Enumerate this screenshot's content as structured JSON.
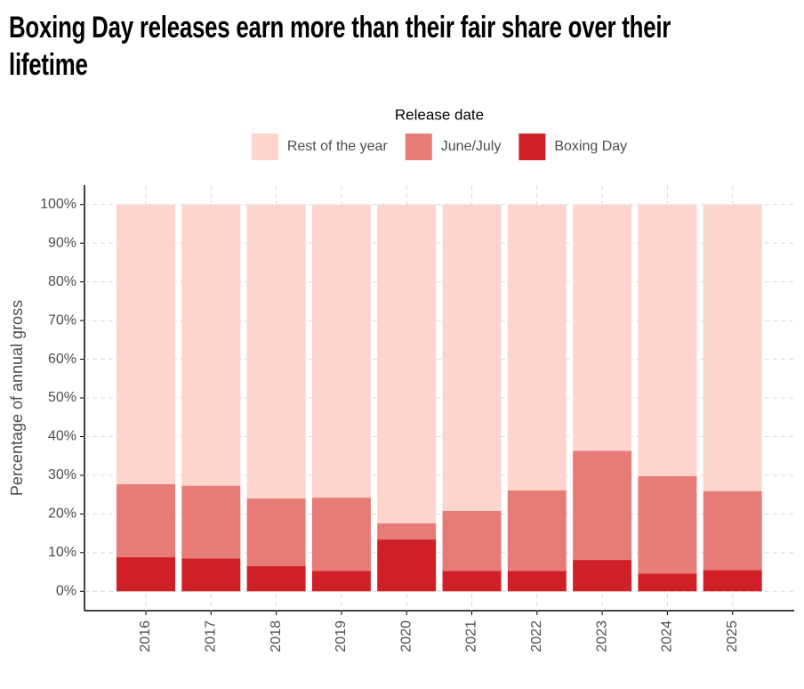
{
  "chart_data": {
    "type": "stacked-bar",
    "title": "Boxing Day releases earn more than their fair share over their lifetime",
    "legend_title": "Release date",
    "y_label": "Percentage of annual gross",
    "categories": [
      "2016",
      "2017",
      "2018",
      "2019",
      "2020",
      "2021",
      "2022",
      "2023",
      "2024",
      "2025"
    ],
    "series": [
      {
        "name": "Rest of the year",
        "color": "#fdd5cd",
        "values": [
          72.3,
          72.7,
          76.0,
          75.8,
          82.4,
          79.2,
          73.9,
          63.7,
          70.2,
          74.1
        ]
      },
      {
        "name": "June/July",
        "color": "#e77b78",
        "values": [
          18.9,
          18.8,
          17.5,
          18.9,
          4.2,
          15.5,
          20.8,
          28.2,
          25.2,
          20.4
        ]
      },
      {
        "name": "Boxing Day",
        "color": "#d02027",
        "values": [
          8.8,
          8.5,
          6.5,
          5.3,
          13.4,
          5.3,
          5.3,
          8.1,
          4.6,
          5.5
        ]
      }
    ],
    "ylim": [
      -5,
      105
    ],
    "yticks": [
      {
        "value": 0,
        "label": "0%"
      },
      {
        "value": 10,
        "label": "10%"
      },
      {
        "value": 20,
        "label": "20%"
      },
      {
        "value": 30,
        "label": "30%"
      },
      {
        "value": 40,
        "label": "40%"
      },
      {
        "value": 50,
        "label": "50%"
      },
      {
        "value": 60,
        "label": "60%"
      },
      {
        "value": 70,
        "label": "70%"
      },
      {
        "value": 80,
        "label": "80%"
      },
      {
        "value": 90,
        "label": "90%"
      },
      {
        "value": 100,
        "label": "100%"
      }
    ],
    "grid": true
  }
}
